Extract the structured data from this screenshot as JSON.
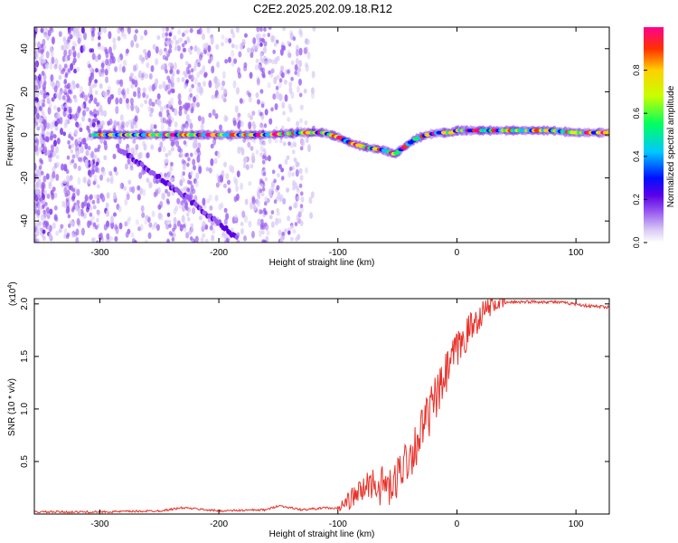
{
  "title": "C2E2.2025.202.09.18.R12",
  "chart_data": [
    {
      "type": "heatmap",
      "xlabel": "Height of straight line (km)",
      "ylabel": "Frequency (Hz)",
      "xlim": [
        -355,
        128
      ],
      "ylim": [
        -50,
        50
      ],
      "xticks": [
        -300,
        -200,
        -100,
        0,
        100
      ],
      "yticks": [
        -40,
        -20,
        0,
        20,
        40
      ],
      "xticklabels": [
        "-300",
        "-200",
        "-100",
        "0",
        "100"
      ],
      "yticklabels": [
        "-40",
        "-20",
        "0",
        "20",
        "40"
      ],
      "colorbar": {
        "label": "Normalized spectral amplitude",
        "range": [
          0,
          1
        ],
        "ticks": [
          0,
          0.2,
          0.4,
          0.6,
          0.8
        ],
        "ticklabels": [
          "0.0",
          "0.2",
          "0.4",
          "0.6",
          "0.8"
        ],
        "colormap": [
          "#ffffff",
          "#d8c8f5",
          "#9a5cf0",
          "#5a00e8",
          "#0010ff",
          "#00c8ff",
          "#00ff60",
          "#c8ff00",
          "#ffd000",
          "#ff3000",
          "#ff0090"
        ]
      },
      "carrier_trace": {
        "x": [
          -305,
          -280,
          -250,
          -220,
          -190,
          -160,
          -130,
          -112,
          -100,
          -88,
          -75,
          -62,
          -52,
          -45,
          -35,
          -25,
          -15,
          -5,
          0,
          20,
          50,
          80,
          100,
          128
        ],
        "y": [
          0,
          0,
          0,
          0,
          0,
          0,
          1,
          1,
          -1,
          -4,
          -6,
          -7,
          -9,
          -6,
          -2,
          0,
          1,
          1,
          2,
          2,
          2,
          2,
          1,
          1
        ]
      },
      "diagonal_trace": {
        "x": [
          -285,
          -270,
          -255,
          -240,
          -225,
          -210,
          -195,
          -185
        ],
        "y": [
          -6,
          -12,
          -18,
          -24,
          -30,
          -37,
          -43,
          -48
        ]
      },
      "noise_region_x": [
        -355,
        -120
      ]
    },
    {
      "type": "line",
      "xlabel": "Height of straight line (km)",
      "ylabel": "SNR (10 * v/v)",
      "y_multiplier": "(x10",
      "y_multiplier_exp": "4",
      "y_multiplier_close": ")",
      "xlim": [
        -355,
        128
      ],
      "ylim": [
        0,
        2.05
      ],
      "xticks": [
        -300,
        -200,
        -100,
        0,
        100
      ],
      "yticks": [
        0.5,
        1.0,
        1.5,
        2.0
      ],
      "xticklabels": [
        "-300",
        "-200",
        "-100",
        "0",
        "100"
      ],
      "yticklabels": [
        "0.5",
        "1.0",
        "1.5",
        "2.0"
      ],
      "color": "#e8322a",
      "series": [
        {
          "x": [
            -355,
            -300,
            -250,
            -230,
            -200,
            -160,
            -150,
            -130,
            -110,
            -100,
            -92,
            -85,
            -80,
            -75,
            -70,
            -65,
            -60,
            -55,
            -50,
            -45,
            -40,
            -35,
            -30,
            -25,
            -20,
            -15,
            -10,
            -5,
            0,
            5,
            10,
            15,
            20,
            25,
            30,
            40,
            50,
            60,
            80,
            100,
            110,
            128
          ],
          "y": [
            0.02,
            0.02,
            0.03,
            0.06,
            0.03,
            0.04,
            0.08,
            0.04,
            0.06,
            0.05,
            0.12,
            0.18,
            0.22,
            0.28,
            0.3,
            0.25,
            0.3,
            0.2,
            0.35,
            0.5,
            0.55,
            0.65,
            0.8,
            0.9,
            1.05,
            1.15,
            1.3,
            1.45,
            1.55,
            1.65,
            1.75,
            1.82,
            1.9,
            1.95,
            2.0,
            2.01,
            2.02,
            2.02,
            2.02,
            2.0,
            1.98,
            1.97
          ]
        }
      ]
    }
  ]
}
